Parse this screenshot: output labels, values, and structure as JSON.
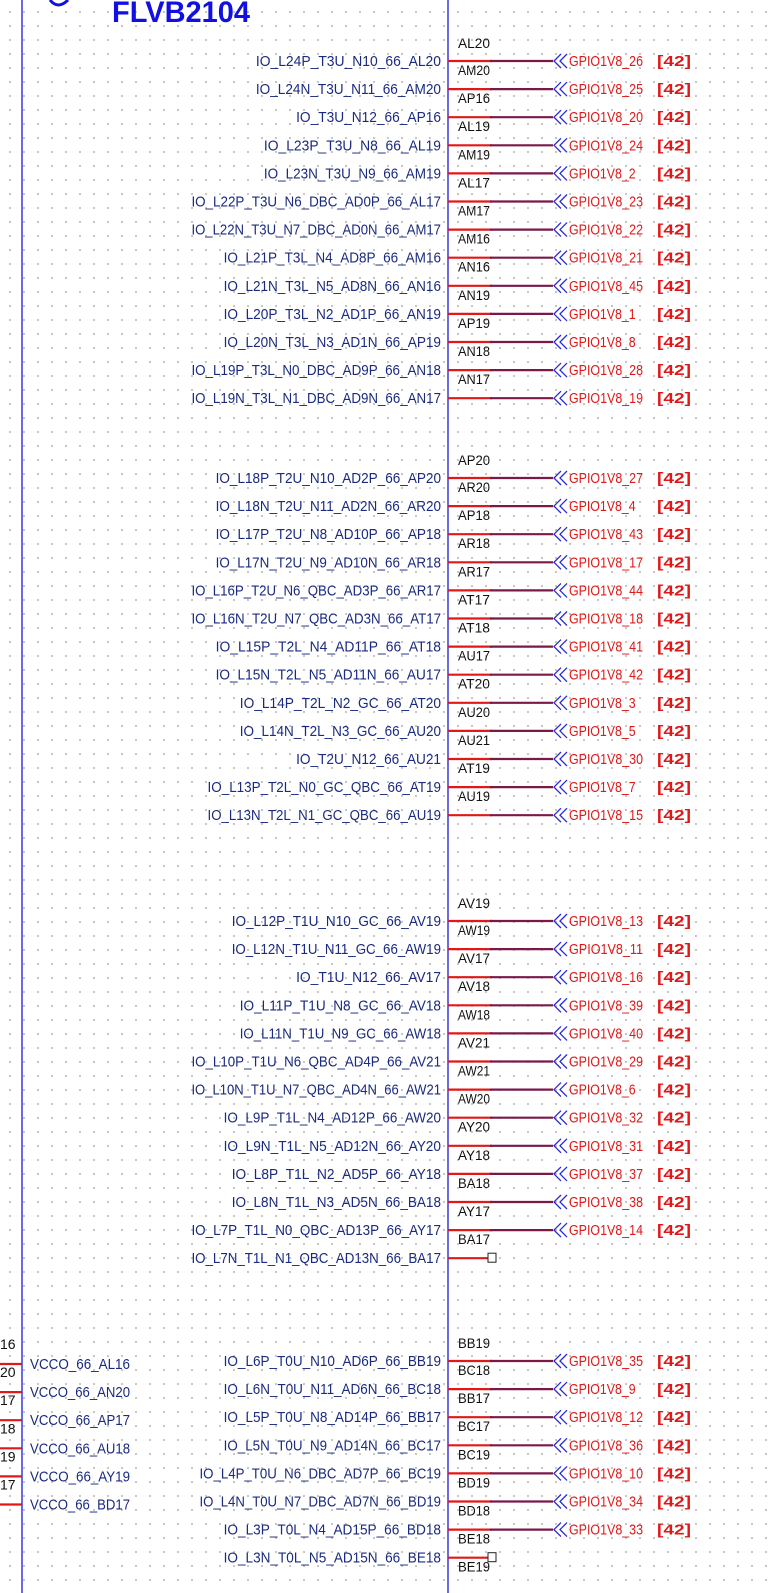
{
  "part_name": "FLVB2104",
  "colors": {
    "body_line": "#2a2ad6",
    "pin_name": "#1a2a80",
    "pin_number": "#111111",
    "wire": "#7a1848",
    "pin_stub": "#e01818",
    "net_label": "#e01818",
    "part_name": "#1010e0"
  },
  "left_pins": {
    "partial_numbers": [
      "16",
      "20",
      "17",
      "18",
      "19",
      "17"
    ],
    "names": [
      "VCCO_66_AL16",
      "VCCO_66_AN20",
      "VCCO_66_AP17",
      "VCCO_66_AU18",
      "VCCO_66_AY19",
      "VCCO_66_BD17"
    ]
  },
  "groups": [
    {
      "first_pin_number": "AL20",
      "pins": [
        {
          "name": "IO_L24P_T3U_N10_66_AL20",
          "number": "AM20",
          "net": "GPIO1V8_26",
          "ref": "[42]"
        },
        {
          "name": "IO_L24N_T3U_N11_66_AM20",
          "number": "AP16",
          "net": "GPIO1V8_25",
          "ref": "[42]"
        },
        {
          "name": "IO_T3U_N12_66_AP16",
          "number": "AL19",
          "net": "GPIO1V8_20",
          "ref": "[42]"
        },
        {
          "name": "IO_L23P_T3U_N8_66_AL19",
          "number": "AM19",
          "net": "GPIO1V8_24",
          "ref": "[42]"
        },
        {
          "name": "IO_L23N_T3U_N9_66_AM19",
          "number": "AL17",
          "net": "GPIO1V8_2",
          "ref": "[42]"
        },
        {
          "name": "IO_L22P_T3U_N6_DBC_AD0P_66_AL17",
          "number": "AM17",
          "net": "GPIO1V8_23",
          "ref": "[42]"
        },
        {
          "name": "IO_L22N_T3U_N7_DBC_AD0N_66_AM17",
          "number": "AM16",
          "net": "GPIO1V8_22",
          "ref": "[42]"
        },
        {
          "name": "IO_L21P_T3L_N4_AD8P_66_AM16",
          "number": "AN16",
          "net": "GPIO1V8_21",
          "ref": "[42]"
        },
        {
          "name": "IO_L21N_T3L_N5_AD8N_66_AN16",
          "number": "AN19",
          "net": "GPIO1V8_45",
          "ref": "[42]"
        },
        {
          "name": "IO_L20P_T3L_N2_AD1P_66_AN19",
          "number": "AP19",
          "net": "GPIO1V8_1",
          "ref": "[42]"
        },
        {
          "name": "IO_L20N_T3L_N3_AD1N_66_AP19",
          "number": "AN18",
          "net": "GPIO1V8_8",
          "ref": "[42]"
        },
        {
          "name": "IO_L19P_T3L_N0_DBC_AD9P_66_AN18",
          "number": "AN17",
          "net": "GPIO1V8_28",
          "ref": "[42]"
        },
        {
          "name": "IO_L19N_T3L_N1_DBC_AD9N_66_AN17",
          "number": "",
          "net": "GPIO1V8_19",
          "ref": "[42]"
        }
      ]
    },
    {
      "first_pin_number": "AP20",
      "pins": [
        {
          "name": "IO_L18P_T2U_N10_AD2P_66_AP20",
          "number": "AR20",
          "net": "GPIO1V8_27",
          "ref": "[42]"
        },
        {
          "name": "IO_L18N_T2U_N11_AD2N_66_AR20",
          "number": "AP18",
          "net": "GPIO1V8_4",
          "ref": "[42]"
        },
        {
          "name": "IO_L17P_T2U_N8_AD10P_66_AP18",
          "number": "AR18",
          "net": "GPIO1V8_43",
          "ref": "[42]"
        },
        {
          "name": "IO_L17N_T2U_N9_AD10N_66_AR18",
          "number": "AR17",
          "net": "GPIO1V8_17",
          "ref": "[42]"
        },
        {
          "name": "IO_L16P_T2U_N6_QBC_AD3P_66_AR17",
          "number": "AT17",
          "net": "GPIO1V8_44",
          "ref": "[42]"
        },
        {
          "name": "IO_L16N_T2U_N7_QBC_AD3N_66_AT17",
          "number": "AT18",
          "net": "GPIO1V8_18",
          "ref": "[42]"
        },
        {
          "name": "IO_L15P_T2L_N4_AD11P_66_AT18",
          "number": "AU17",
          "net": "GPIO1V8_41",
          "ref": "[42]"
        },
        {
          "name": "IO_L15N_T2L_N5_AD11N_66_AU17",
          "number": "AT20",
          "net": "GPIO1V8_42",
          "ref": "[42]"
        },
        {
          "name": "IO_L14P_T2L_N2_GC_66_AT20",
          "number": "AU20",
          "net": "GPIO1V8_3",
          "ref": "[42]"
        },
        {
          "name": "IO_L14N_T2L_N3_GC_66_AU20",
          "number": "AU21",
          "net": "GPIO1V8_5",
          "ref": "[42]"
        },
        {
          "name": "IO_T2U_N12_66_AU21",
          "number": "AT19",
          "net": "GPIO1V8_30",
          "ref": "[42]"
        },
        {
          "name": "IO_L13P_T2L_N0_GC_QBC_66_AT19",
          "number": "AU19",
          "net": "GPIO1V8_7",
          "ref": "[42]"
        },
        {
          "name": "IO_L13N_T2L_N1_GC_QBC_66_AU19",
          "number": "",
          "net": "GPIO1V8_15",
          "ref": "[42]"
        }
      ]
    },
    {
      "first_pin_number": "AV19",
      "pins": [
        {
          "name": "IO_L12P_T1U_N10_GC_66_AV19",
          "number": "AW19",
          "net": "GPIO1V8_13",
          "ref": "[42]"
        },
        {
          "name": "IO_L12N_T1U_N11_GC_66_AW19",
          "number": "AV17",
          "net": "GPIO1V8_11",
          "ref": "[42]"
        },
        {
          "name": "IO_T1U_N12_66_AV17",
          "number": "AV18",
          "net": "GPIO1V8_16",
          "ref": "[42]"
        },
        {
          "name": "IO_L11P_T1U_N8_GC_66_AV18",
          "number": "AW18",
          "net": "GPIO1V8_39",
          "ref": "[42]"
        },
        {
          "name": "IO_L11N_T1U_N9_GC_66_AW18",
          "number": "AV21",
          "net": "GPIO1V8_40",
          "ref": "[42]"
        },
        {
          "name": "IO_L10P_T1U_N6_QBC_AD4P_66_AV21",
          "number": "AW21",
          "net": "GPIO1V8_29",
          "ref": "[42]"
        },
        {
          "name": "IO_L10N_T1U_N7_QBC_AD4N_66_AW21",
          "number": "AW20",
          "net": "GPIO1V8_6",
          "ref": "[42]"
        },
        {
          "name": "IO_L9P_T1L_N4_AD12P_66_AW20",
          "number": "AY20",
          "net": "GPIO1V8_32",
          "ref": "[42]"
        },
        {
          "name": "IO_L9N_T1L_N5_AD12N_66_AY20",
          "number": "AY18",
          "net": "GPIO1V8_31",
          "ref": "[42]"
        },
        {
          "name": "IO_L8P_T1L_N2_AD5P_66_AY18",
          "number": "BA18",
          "net": "GPIO1V8_37",
          "ref": "[42]"
        },
        {
          "name": "IO_L8N_T1L_N3_AD5N_66_BA18",
          "number": "AY17",
          "net": "GPIO1V8_38",
          "ref": "[42]"
        },
        {
          "name": "IO_L7P_T1L_N0_QBC_AD13P_66_AY17",
          "number": "BA17",
          "net": "GPIO1V8_14",
          "ref": "[42]"
        },
        {
          "name": "IO_L7N_T1L_N1_QBC_AD13N_66_BA17",
          "number": "",
          "net": "",
          "ref": ""
        }
      ]
    },
    {
      "first_pin_number": "BB19",
      "pins": [
        {
          "name": "IO_L6P_T0U_N10_AD6P_66_BB19",
          "number": "BC18",
          "net": "GPIO1V8_35",
          "ref": "[42]"
        },
        {
          "name": "IO_L6N_T0U_N11_AD6N_66_BC18",
          "number": "BB17",
          "net": "GPIO1V8_9",
          "ref": "[42]"
        },
        {
          "name": "IO_L5P_T0U_N8_AD14P_66_BB17",
          "number": "BC17",
          "net": "GPIO1V8_12",
          "ref": "[42]"
        },
        {
          "name": "IO_L5N_T0U_N9_AD14N_66_BC17",
          "number": "BC19",
          "net": "GPIO1V8_36",
          "ref": "[42]"
        },
        {
          "name": "IO_L4P_T0U_N6_DBC_AD7P_66_BC19",
          "number": "BD19",
          "net": "GPIO1V8_10",
          "ref": "[42]"
        },
        {
          "name": "IO_L4N_T0U_N7_DBC_AD7N_66_BD19",
          "number": "BD18",
          "net": "GPIO1V8_34",
          "ref": "[42]"
        },
        {
          "name": "IO_L3P_T0L_N4_AD15P_66_BD18",
          "number": "BE18",
          "net": "GPIO1V8_33",
          "ref": "[42]"
        },
        {
          "name": "IO_L3N_T0L_N5_AD15N_66_BE18",
          "number": "BE19",
          "net": "",
          "ref": ""
        }
      ]
    }
  ]
}
